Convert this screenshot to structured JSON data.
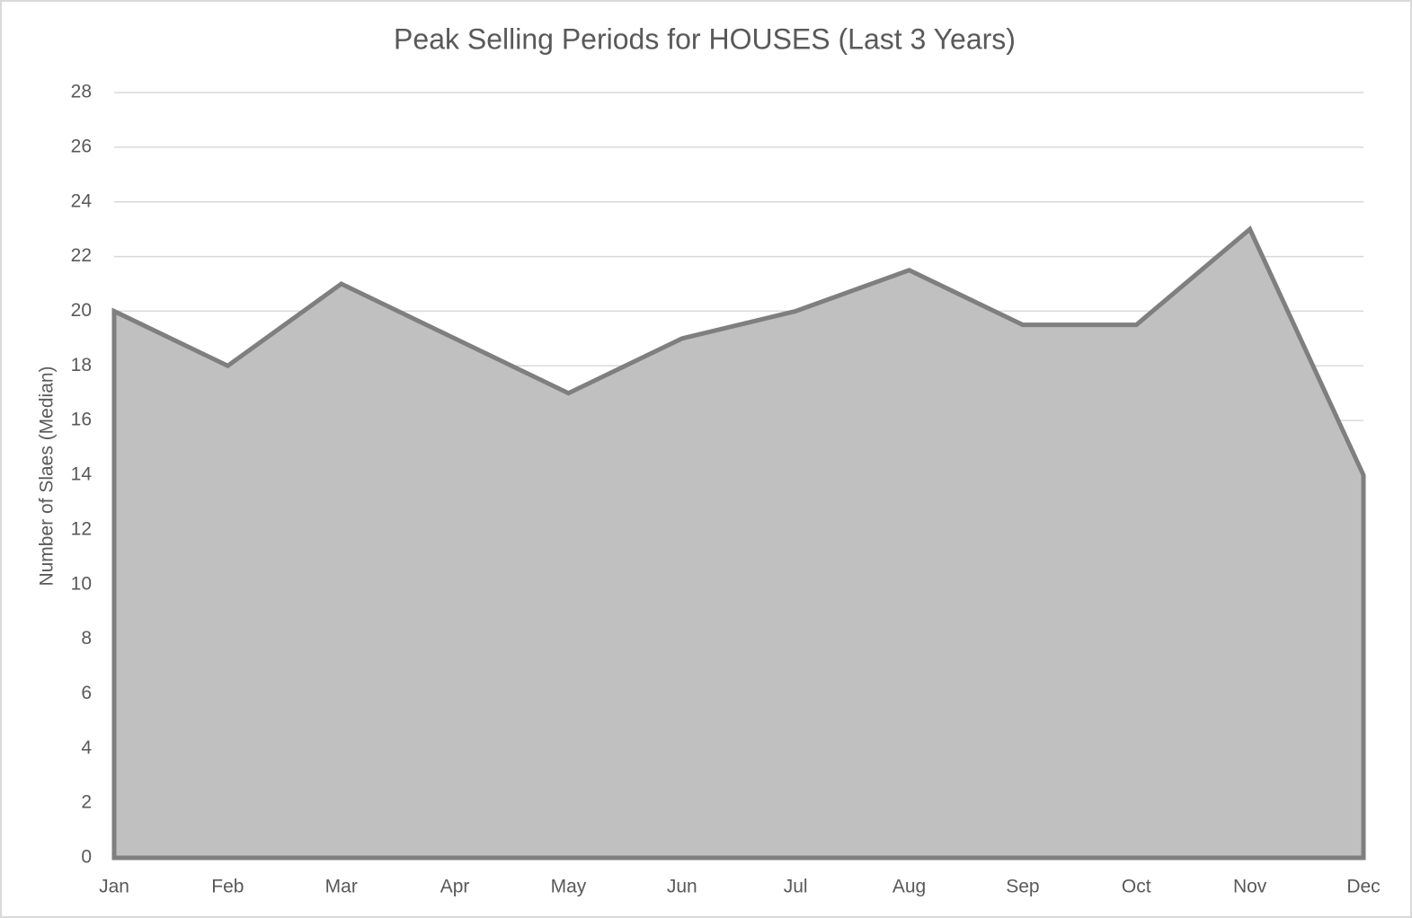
{
  "chart_data": {
    "type": "area",
    "title": "Peak Selling Periods for HOUSES (Last 3 Years)",
    "y_label": "Number of Slaes (Median)",
    "categories": [
      "Jan",
      "Feb",
      "Mar",
      "Apr",
      "May",
      "Jun",
      "Jul",
      "Aug",
      "Sep",
      "Oct",
      "Nov",
      "Dec"
    ],
    "values": [
      20,
      18,
      21,
      19,
      17,
      19,
      20,
      21.5,
      19.5,
      19.5,
      23,
      14
    ],
    "color": "#c0c0c0",
    "line_color": "#7f7f7f",
    "ylim": [
      0,
      28
    ],
    "yticks": [
      0,
      2,
      4,
      6,
      8,
      10,
      12,
      14,
      16,
      18,
      20,
      22,
      24,
      26,
      28
    ],
    "grid": true
  }
}
